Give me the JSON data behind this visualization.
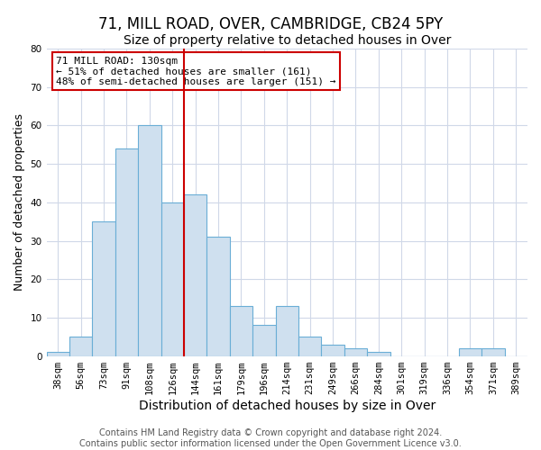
{
  "title": "71, MILL ROAD, OVER, CAMBRIDGE, CB24 5PY",
  "subtitle": "Size of property relative to detached houses in Over",
  "xlabel": "Distribution of detached houses by size in Over",
  "ylabel": "Number of detached properties",
  "bar_labels": [
    "38sqm",
    "56sqm",
    "73sqm",
    "91sqm",
    "108sqm",
    "126sqm",
    "144sqm",
    "161sqm",
    "179sqm",
    "196sqm",
    "214sqm",
    "231sqm",
    "249sqm",
    "266sqm",
    "284sqm",
    "301sqm",
    "319sqm",
    "336sqm",
    "354sqm",
    "371sqm",
    "389sqm"
  ],
  "bar_heights": [
    1,
    5,
    35,
    54,
    60,
    40,
    42,
    31,
    13,
    8,
    13,
    5,
    3,
    2,
    1,
    0,
    0,
    0,
    2,
    2,
    0
  ],
  "bar_color": "#cfe0ef",
  "bar_edge_color": "#6aaed6",
  "vline_x_idx": 5,
  "vline_color": "#cc0000",
  "annotation_text": "71 MILL ROAD: 130sqm\n← 51% of detached houses are smaller (161)\n48% of semi-detached houses are larger (151) →",
  "annotation_box_color": "#ffffff",
  "annotation_box_edge": "#cc0000",
  "ylim": [
    0,
    80
  ],
  "yticks": [
    0,
    10,
    20,
    30,
    40,
    50,
    60,
    70,
    80
  ],
  "footer1": "Contains HM Land Registry data © Crown copyright and database right 2024.",
  "footer2": "Contains public sector information licensed under the Open Government Licence v3.0.",
  "background_color": "#ffffff",
  "grid_color": "#d0d8e8",
  "title_fontsize": 12,
  "subtitle_fontsize": 10,
  "xlabel_fontsize": 10,
  "ylabel_fontsize": 9,
  "tick_fontsize": 7.5,
  "annotation_fontsize": 8,
  "footer_fontsize": 7
}
